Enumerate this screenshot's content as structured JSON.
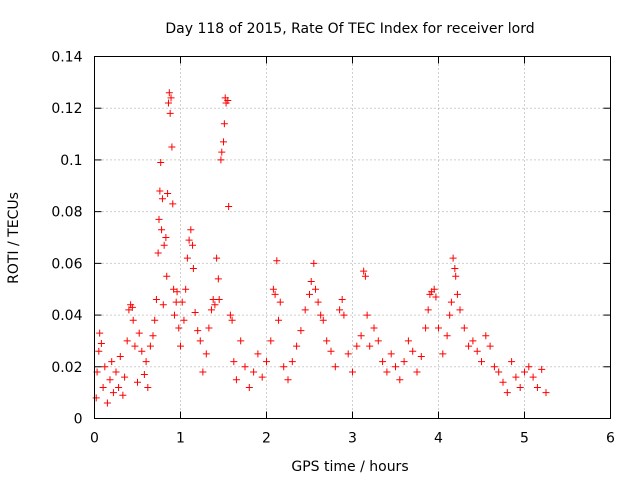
{
  "chart_data": {
    "type": "scatter",
    "title": "Day 118 of 2015, Rate Of TEC Index for receiver lord",
    "xlabel": "GPS time / hours",
    "ylabel": "ROTI / TECUs",
    "xlim": [
      0,
      6
    ],
    "ylim": [
      0,
      0.14
    ],
    "x_ticks": [
      0,
      1,
      2,
      3,
      4,
      5,
      6
    ],
    "x_tick_labels": [
      "0",
      "1",
      "2",
      "3",
      "4",
      "5",
      "6"
    ],
    "y_ticks": [
      0,
      0.02,
      0.04,
      0.06,
      0.08,
      0.1,
      0.12,
      0.14
    ],
    "y_tick_labels": [
      "0",
      "0.02",
      "0.04",
      "0.06",
      "0.08",
      "0.1",
      "0.12",
      "0.14"
    ],
    "grid": true,
    "marker": "+",
    "series": [
      {
        "name": "ROTI",
        "color": "#ff0000",
        "points": [
          [
            0.02,
            0.008
          ],
          [
            0.03,
            0.018
          ],
          [
            0.05,
            0.026
          ],
          [
            0.06,
            0.033
          ],
          [
            0.08,
            0.029
          ],
          [
            0.1,
            0.012
          ],
          [
            0.12,
            0.02
          ],
          [
            0.15,
            0.006
          ],
          [
            0.18,
            0.015
          ],
          [
            0.2,
            0.022
          ],
          [
            0.22,
            0.01
          ],
          [
            0.25,
            0.018
          ],
          [
            0.28,
            0.012
          ],
          [
            0.3,
            0.024
          ],
          [
            0.33,
            0.009
          ],
          [
            0.35,
            0.016
          ],
          [
            0.38,
            0.03
          ],
          [
            0.4,
            0.042
          ],
          [
            0.42,
            0.044
          ],
          [
            0.44,
            0.043
          ],
          [
            0.45,
            0.038
          ],
          [
            0.47,
            0.028
          ],
          [
            0.5,
            0.014
          ],
          [
            0.52,
            0.033
          ],
          [
            0.55,
            0.026
          ],
          [
            0.58,
            0.017
          ],
          [
            0.6,
            0.022
          ],
          [
            0.62,
            0.012
          ],
          [
            0.65,
            0.028
          ],
          [
            0.68,
            0.032
          ],
          [
            0.7,
            0.038
          ],
          [
            0.72,
            0.046
          ],
          [
            0.74,
            0.064
          ],
          [
            0.75,
            0.077
          ],
          [
            0.76,
            0.088
          ],
          [
            0.77,
            0.099
          ],
          [
            0.78,
            0.073
          ],
          [
            0.79,
            0.085
          ],
          [
            0.8,
            0.044
          ],
          [
            0.81,
            0.067
          ],
          [
            0.83,
            0.07
          ],
          [
            0.84,
            0.055
          ],
          [
            0.85,
            0.087
          ],
          [
            0.86,
            0.122
          ],
          [
            0.87,
            0.126
          ],
          [
            0.88,
            0.118
          ],
          [
            0.89,
            0.124
          ],
          [
            0.9,
            0.105
          ],
          [
            0.91,
            0.083
          ],
          [
            0.92,
            0.05
          ],
          [
            0.93,
            0.04
          ],
          [
            0.95,
            0.045
          ],
          [
            0.96,
            0.049
          ],
          [
            0.98,
            0.035
          ],
          [
            1.0,
            0.028
          ],
          [
            1.02,
            0.045
          ],
          [
            1.04,
            0.038
          ],
          [
            1.06,
            0.05
          ],
          [
            1.08,
            0.062
          ],
          [
            1.1,
            0.069
          ],
          [
            1.12,
            0.073
          ],
          [
            1.14,
            0.067
          ],
          [
            1.15,
            0.058
          ],
          [
            1.17,
            0.041
          ],
          [
            1.2,
            0.034
          ],
          [
            1.23,
            0.03
          ],
          [
            1.26,
            0.018
          ],
          [
            1.3,
            0.025
          ],
          [
            1.33,
            0.035
          ],
          [
            1.36,
            0.042
          ],
          [
            1.38,
            0.046
          ],
          [
            1.4,
            0.044
          ],
          [
            1.42,
            0.062
          ],
          [
            1.44,
            0.054
          ],
          [
            1.45,
            0.046
          ],
          [
            1.47,
            0.1
          ],
          [
            1.48,
            0.103
          ],
          [
            1.5,
            0.107
          ],
          [
            1.51,
            0.114
          ],
          [
            1.52,
            0.124
          ],
          [
            1.53,
            0.122
          ],
          [
            1.55,
            0.123
          ],
          [
            1.56,
            0.082
          ],
          [
            1.58,
            0.04
          ],
          [
            1.6,
            0.038
          ],
          [
            1.62,
            0.022
          ],
          [
            1.65,
            0.015
          ],
          [
            1.7,
            0.03
          ],
          [
            1.75,
            0.02
          ],
          [
            1.8,
            0.012
          ],
          [
            1.85,
            0.018
          ],
          [
            1.9,
            0.025
          ],
          [
            1.95,
            0.016
          ],
          [
            2.0,
            0.022
          ],
          [
            2.05,
            0.03
          ],
          [
            2.08,
            0.05
          ],
          [
            2.1,
            0.048
          ],
          [
            2.12,
            0.061
          ],
          [
            2.14,
            0.038
          ],
          [
            2.16,
            0.045
          ],
          [
            2.2,
            0.02
          ],
          [
            2.25,
            0.015
          ],
          [
            2.3,
            0.022
          ],
          [
            2.35,
            0.028
          ],
          [
            2.4,
            0.034
          ],
          [
            2.45,
            0.042
          ],
          [
            2.5,
            0.048
          ],
          [
            2.52,
            0.053
          ],
          [
            2.55,
            0.06
          ],
          [
            2.57,
            0.05
          ],
          [
            2.6,
            0.045
          ],
          [
            2.63,
            0.04
          ],
          [
            2.66,
            0.038
          ],
          [
            2.7,
            0.03
          ],
          [
            2.75,
            0.026
          ],
          [
            2.8,
            0.02
          ],
          [
            2.85,
            0.042
          ],
          [
            2.88,
            0.046
          ],
          [
            2.9,
            0.04
          ],
          [
            2.95,
            0.025
          ],
          [
            3.0,
            0.018
          ],
          [
            3.05,
            0.028
          ],
          [
            3.1,
            0.032
          ],
          [
            3.13,
            0.057
          ],
          [
            3.15,
            0.055
          ],
          [
            3.17,
            0.04
          ],
          [
            3.2,
            0.028
          ],
          [
            3.25,
            0.035
          ],
          [
            3.3,
            0.03
          ],
          [
            3.35,
            0.022
          ],
          [
            3.4,
            0.018
          ],
          [
            3.45,
            0.025
          ],
          [
            3.5,
            0.02
          ],
          [
            3.55,
            0.015
          ],
          [
            3.6,
            0.022
          ],
          [
            3.65,
            0.03
          ],
          [
            3.7,
            0.026
          ],
          [
            3.75,
            0.018
          ],
          [
            3.8,
            0.024
          ],
          [
            3.85,
            0.035
          ],
          [
            3.88,
            0.042
          ],
          [
            3.9,
            0.048
          ],
          [
            3.92,
            0.049
          ],
          [
            3.95,
            0.05
          ],
          [
            3.97,
            0.047
          ],
          [
            4.0,
            0.035
          ],
          [
            4.05,
            0.025
          ],
          [
            4.1,
            0.032
          ],
          [
            4.13,
            0.04
          ],
          [
            4.15,
            0.045
          ],
          [
            4.17,
            0.062
          ],
          [
            4.19,
            0.058
          ],
          [
            4.2,
            0.055
          ],
          [
            4.22,
            0.048
          ],
          [
            4.25,
            0.042
          ],
          [
            4.3,
            0.035
          ],
          [
            4.35,
            0.028
          ],
          [
            4.4,
            0.03
          ],
          [
            4.45,
            0.026
          ],
          [
            4.5,
            0.022
          ],
          [
            4.55,
            0.032
          ],
          [
            4.6,
            0.028
          ],
          [
            4.65,
            0.02
          ],
          [
            4.7,
            0.018
          ],
          [
            4.75,
            0.014
          ],
          [
            4.8,
            0.01
          ],
          [
            4.85,
            0.022
          ],
          [
            4.9,
            0.016
          ],
          [
            4.95,
            0.012
          ],
          [
            5.0,
            0.018
          ],
          [
            5.05,
            0.02
          ],
          [
            5.1,
            0.016
          ],
          [
            5.15,
            0.012
          ],
          [
            5.2,
            0.019
          ],
          [
            5.25,
            0.01
          ]
        ]
      }
    ]
  }
}
